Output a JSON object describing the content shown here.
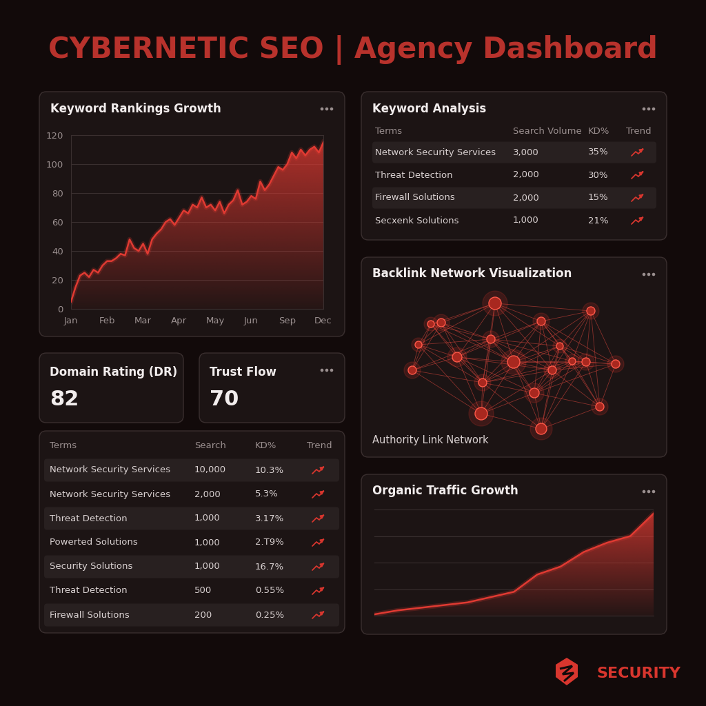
{
  "title": "CYBERNETIC SEO | Agency Dashboard",
  "chart_data": [
    {
      "type": "area",
      "title": "Keyword Rankings Growth",
      "categories": [
        "Jan",
        null,
        null,
        null,
        null,
        null,
        null,
        null,
        "Feb",
        null,
        null,
        null,
        null,
        null,
        null,
        null,
        "Mar",
        null,
        null,
        null,
        null,
        null,
        null,
        null,
        "Apr",
        null,
        null,
        null,
        null,
        null,
        null,
        null,
        "May",
        null,
        null,
        null,
        null,
        null,
        null,
        null,
        "Jun",
        null,
        null,
        null,
        null,
        null,
        null,
        null,
        "Sep",
        null,
        null,
        null,
        null,
        null,
        null,
        null,
        "Dec"
      ],
      "values": [
        5,
        15,
        23,
        25,
        22,
        27,
        25,
        30,
        33,
        33,
        35,
        38,
        37,
        48,
        42,
        40,
        45,
        38,
        48,
        52,
        55,
        60,
        62,
        58,
        63,
        68,
        66,
        72,
        70,
        77,
        70,
        72,
        68,
        74,
        66,
        72,
        75,
        82,
        72,
        74,
        78,
        76,
        88,
        82,
        86,
        92,
        98,
        96,
        100,
        108,
        104,
        110,
        106,
        110,
        112,
        108,
        115
      ],
      "color": "#e03a32",
      "ylim": [
        0,
        120
      ],
      "yticks": [
        0,
        20,
        40,
        60,
        80,
        100,
        120
      ],
      "grid": true
    },
    {
      "type": "area",
      "title": "Organic Traffic Growth",
      "categories": [
        null,
        null,
        null,
        null,
        null,
        null,
        null,
        null,
        null,
        null,
        null,
        null,
        null
      ],
      "values": [
        1,
        4,
        6,
        8,
        10,
        14,
        18,
        31,
        37,
        48,
        55,
        60,
        77
      ],
      "color": "#e03a32",
      "ylim": [
        0,
        80
      ],
      "yticks": [
        0,
        20,
        40,
        60,
        80
      ],
      "grid": true,
      "tick_labels": false
    }
  ],
  "keyword_analysis": {
    "title": "Keyword Analysis",
    "columns": [
      "Terms",
      "Search Volume",
      "KD%",
      "Trend"
    ],
    "rows": [
      [
        "Network Security Services",
        "3,000",
        "35%"
      ],
      [
        "Threat Detection",
        "2,000",
        "30%"
      ],
      [
        "Firewall Solutions",
        "2,000",
        "15%"
      ],
      [
        "Secxenk Solutions",
        "1,000",
        "21%"
      ]
    ]
  },
  "metrics": [
    {
      "label": "Domain Rating (DR)",
      "value": 82
    },
    {
      "label": "Trust Flow",
      "value": 70
    }
  ],
  "keyword_table": {
    "columns": [
      "Terms",
      "Search",
      "KD%",
      "Trend"
    ],
    "rows": [
      [
        "Network Security Services",
        "10,000",
        "10.3%"
      ],
      [
        "Network Security Services",
        "2,000",
        "5.3%"
      ],
      [
        "Threat Detection",
        "1,000",
        "3.17%"
      ],
      [
        "Powerted Solutions",
        "1,000",
        "2.T9%"
      ],
      [
        "Security Solutions",
        "1,000",
        "16.7%"
      ],
      [
        "Threat Detection",
        "500",
        "0.55%"
      ],
      [
        "Firewall Solutions",
        "200",
        "0.25%"
      ]
    ]
  },
  "backlink_network": {
    "title": "Backlink Network Visualization",
    "caption": "Authority Link Network"
  },
  "logo": "SECURITY"
}
